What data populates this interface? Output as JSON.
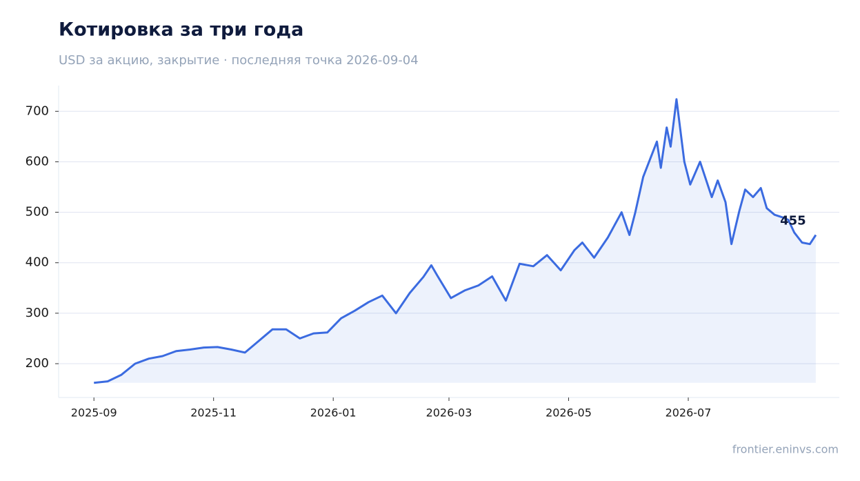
{
  "chart_data": {
    "type": "line",
    "title": "Котировка за три года",
    "subtitle": "USD за акцию, закрытие · последняя точка 2026-09-04",
    "source": "frontier.eninvs.com",
    "series": [
      {
        "name": "Котировка",
        "color": "#3b6be0",
        "x": [
          "2025-09-01",
          "2025-09-08",
          "2025-09-15",
          "2025-09-22",
          "2025-09-29",
          "2025-10-06",
          "2025-10-13",
          "2025-10-20",
          "2025-10-27",
          "2025-11-03",
          "2025-11-10",
          "2025-11-17",
          "2025-11-24",
          "2025-12-01",
          "2025-12-08",
          "2025-12-15",
          "2025-12-22",
          "2025-12-29",
          "2026-01-05",
          "2026-01-12",
          "2026-01-19",
          "2026-01-26",
          "2026-02-02",
          "2026-02-09",
          "2026-02-16",
          "2026-02-20",
          "2026-02-23",
          "2026-03-02",
          "2026-03-09",
          "2026-03-16",
          "2026-03-23",
          "2026-03-30",
          "2026-04-06",
          "2026-04-13",
          "2026-04-20",
          "2026-04-27",
          "2026-05-04",
          "2026-05-08",
          "2026-05-14",
          "2026-05-21",
          "2026-05-28",
          "2026-06-01",
          "2026-06-04",
          "2026-06-08",
          "2026-06-15",
          "2026-06-17",
          "2026-06-20",
          "2026-06-22",
          "2026-06-25",
          "2026-06-29",
          "2026-07-02",
          "2026-07-07",
          "2026-07-13",
          "2026-07-16",
          "2026-07-20",
          "2026-07-23",
          "2026-07-27",
          "2026-07-30",
          "2026-08-03",
          "2026-08-07",
          "2026-08-10",
          "2026-08-14",
          "2026-08-18",
          "2026-08-21",
          "2026-08-24",
          "2026-08-28",
          "2026-09-01",
          "2026-09-04"
        ],
        "values": [
          162,
          165,
          178,
          200,
          210,
          215,
          225,
          228,
          232,
          233,
          228,
          222,
          245,
          268,
          268,
          250,
          260,
          262,
          290,
          305,
          322,
          335,
          300,
          340,
          372,
          395,
          375,
          330,
          345,
          355,
          373,
          325,
          398,
          393,
          415,
          385,
          425,
          440,
          410,
          450,
          500,
          455,
          500,
          570,
          640,
          588,
          668,
          630,
          724,
          600,
          555,
          600,
          530,
          563,
          520,
          437,
          502,
          545,
          530,
          548,
          508,
          495,
          490,
          485,
          460,
          440,
          437,
          455
        ],
        "value_labels": {
          "67": "455"
        }
      }
    ],
    "xlim": [
      "2025-08-14",
      "2026-09-16"
    ],
    "xticks": [
      {
        "value": "2025-09-01",
        "label": "2025-09"
      },
      {
        "value": "2025-11-01",
        "label": "2025-11"
      },
      {
        "value": "2026-01-01",
        "label": "2026-01"
      },
      {
        "value": "2026-03-01",
        "label": "2026-03"
      },
      {
        "value": "2026-05-01",
        "label": "2026-05"
      },
      {
        "value": "2026-07-01",
        "label": "2026-07"
      }
    ],
    "ylim": [
      133,
      751
    ],
    "yticks": [
      200,
      300,
      400,
      500,
      600,
      700
    ],
    "grid": true
  }
}
